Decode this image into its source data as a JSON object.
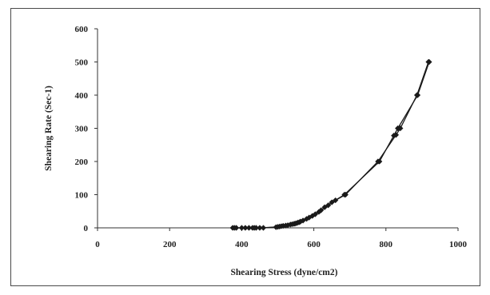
{
  "chart_data": {
    "type": "scatter",
    "xlabel": "Shearing Stress (dyne/cm2)",
    "ylabel": "Shearing Rate (Sec-1)",
    "xlim": [
      0,
      1000
    ],
    "ylim": [
      0,
      600
    ],
    "x_ticks": [
      0,
      200,
      400,
      600,
      800,
      1000
    ],
    "y_ticks": [
      0,
      100,
      200,
      300,
      400,
      500,
      600
    ],
    "grid": false,
    "legend": "none",
    "series": [
      {
        "color": "#1a1a1a",
        "marker": "diamond",
        "line": true,
        "points": [
          [
            375,
            0
          ],
          [
            385,
            0
          ],
          [
            410,
            0
          ],
          [
            430,
            0
          ],
          [
            440,
            0
          ],
          [
            460,
            0
          ],
          [
            495,
            2
          ],
          [
            505,
            4
          ],
          [
            515,
            6
          ],
          [
            528,
            8
          ],
          [
            540,
            11
          ],
          [
            548,
            13
          ],
          [
            556,
            16
          ],
          [
            563,
            19
          ],
          [
            580,
            27
          ],
          [
            596,
            36
          ],
          [
            614,
            48
          ],
          [
            630,
            62
          ],
          [
            650,
            77
          ],
          [
            685,
            100
          ],
          [
            782,
            200
          ],
          [
            822,
            278
          ],
          [
            833,
            300
          ],
          [
            888,
            400
          ],
          [
            920,
            500
          ]
        ]
      },
      {
        "color": "#1a1a1a",
        "marker": "diamond",
        "line": true,
        "points": [
          [
            380,
            0
          ],
          [
            400,
            0
          ],
          [
            420,
            0
          ],
          [
            435,
            0
          ],
          [
            450,
            0
          ],
          [
            500,
            3
          ],
          [
            510,
            5
          ],
          [
            522,
            7
          ],
          [
            535,
            10
          ],
          [
            545,
            12
          ],
          [
            552,
            14
          ],
          [
            560,
            17
          ],
          [
            570,
            22
          ],
          [
            587,
            31
          ],
          [
            604,
            41
          ],
          [
            620,
            53
          ],
          [
            640,
            68
          ],
          [
            660,
            83
          ],
          [
            688,
            100
          ],
          [
            778,
            200
          ],
          [
            828,
            280
          ],
          [
            840,
            300
          ],
          [
            886,
            400
          ],
          [
            918,
            500
          ]
        ]
      }
    ]
  }
}
